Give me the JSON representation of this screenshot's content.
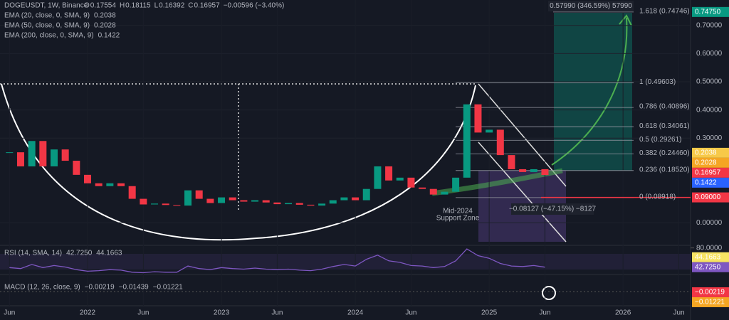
{
  "header": {
    "symbol": "DOGEUSDT, 1W, Binance",
    "ohlc": [
      {
        "key": "O",
        "value": "0.17554"
      },
      {
        "key": "H",
        "value": "0.18115"
      },
      {
        "key": "L",
        "value": "0.16392"
      },
      {
        "key": "C",
        "value": "0.16957"
      }
    ],
    "change": "−0.00596 (−3.40%)",
    "indicators": [
      {
        "label": "EMA (20, close, 0, SMA, 9)",
        "value": "0.2038",
        "color": "#f7e463"
      },
      {
        "label": "EMA (50, close, 0, SMA, 9)",
        "value": "0.2028",
        "color": "#f5a623"
      },
      {
        "label": "EMA (200, close, 0, SMA, 9)",
        "value": "0.1422",
        "color": "#2196f3"
      }
    ]
  },
  "chart_data": {
    "type": "candlestick",
    "x": [
      "2021-06",
      "2021-07",
      "2021-08",
      "2021-09",
      "2021-10",
      "2021-11",
      "2021-12",
      "2022-01",
      "2022-02",
      "2022-03",
      "2022-04",
      "2022-05",
      "2022-06",
      "2022-07",
      "2022-08",
      "2022-09",
      "2022-10",
      "2022-11",
      "2022-12",
      "2023-01",
      "2023-02",
      "2023-03",
      "2023-04",
      "2023-05",
      "2023-06",
      "2023-07",
      "2023-08",
      "2023-09",
      "2023-10",
      "2023-11",
      "2023-12",
      "2024-01",
      "2024-02",
      "2024-03",
      "2024-04",
      "2024-05",
      "2024-06",
      "2024-07",
      "2024-08",
      "2024-09",
      "2024-10",
      "2024-11",
      "2024-12",
      "2025-01",
      "2025-02",
      "2025-03",
      "2025-04",
      "2025-05",
      "2025-06"
    ],
    "values": [
      0.25,
      0.2,
      0.29,
      0.2,
      0.26,
      0.22,
      0.17,
      0.14,
      0.13,
      0.14,
      0.13,
      0.085,
      0.065,
      0.068,
      0.063,
      0.061,
      0.115,
      0.085,
      0.07,
      0.09,
      0.08,
      0.075,
      0.08,
      0.072,
      0.066,
      0.07,
      0.064,
      0.061,
      0.068,
      0.08,
      0.09,
      0.08,
      0.12,
      0.2,
      0.15,
      0.16,
      0.125,
      0.12,
      0.1,
      0.11,
      0.16,
      0.42,
      0.32,
      0.33,
      0.24,
      0.19,
      0.18,
      0.19,
      0.16957
    ],
    "up_color": "#089981",
    "down_color": "#f23645",
    "ylim": [
      -0.08,
      0.79
    ],
    "yticks": [
      {
        "value": 0.7,
        "label": "0.70000"
      },
      {
        "value": 0.6,
        "label": "0.60000"
      },
      {
        "value": 0.5,
        "label": "0.50000"
      },
      {
        "value": 0.4,
        "label": "0.40000"
      },
      {
        "value": 0.3,
        "label": "0.30000"
      },
      {
        "value": 0,
        "label": "0.00000"
      }
    ],
    "xticks": [
      {
        "value": "2021-06",
        "label": "Jun"
      },
      {
        "value": "2022-01",
        "label": "2022"
      },
      {
        "value": "2022-06",
        "label": "Jun"
      },
      {
        "value": "2023-01",
        "label": "2023"
      },
      {
        "value": "2023-06",
        "label": "Jun"
      },
      {
        "value": "2024-01",
        "label": "2024"
      },
      {
        "value": "2024-06",
        "label": "Jun"
      },
      {
        "value": "2025-01",
        "label": "2025"
      },
      {
        "value": "2025-06",
        "label": "Jun"
      },
      {
        "value": "2026-01",
        "label": "2026"
      },
      {
        "value": "2026-06",
        "label": "Jun"
      }
    ],
    "price_tags": [
      {
        "value": 0.7475,
        "label": "0.74750",
        "color": "#089981"
      },
      {
        "value": 0.2038,
        "label": "0.2038",
        "color": "#f7c948"
      },
      {
        "value": 0.2028,
        "label": "0.2028",
        "color": "#f5a623"
      },
      {
        "value": 0.16957,
        "label": "0.16957",
        "color": "#f23645"
      },
      {
        "value": 0.1422,
        "label": "0.1422",
        "color": "#2962ff"
      },
      {
        "value": 0.09,
        "label": "0.09000",
        "color": "#f23645"
      }
    ],
    "fib_levels": [
      {
        "value": 0.74746,
        "label": "1.618 (0.74746)"
      },
      {
        "value": 0.49603,
        "label": "1 (0.49603)"
      },
      {
        "value": 0.40896,
        "label": "0.786 (0.40896)"
      },
      {
        "value": 0.34061,
        "label": "0.618 (0.34061)"
      },
      {
        "value": 0.29261,
        "label": "0.5 (0.29261)"
      },
      {
        "value": 0.2446,
        "label": "0.382 (0.24460)"
      },
      {
        "value": 0.1852,
        "label": "0.236 (0.18520)"
      },
      {
        "value": 0.08918,
        "label": "0 (0.08918)"
      }
    ],
    "annotations": {
      "gain": "0.57990 (346.59%) 57990",
      "loss": "−0.08127 (−47.15%) −8127",
      "zone": [
        "Mid-2024",
        "Support Zone"
      ]
    },
    "rsi": {
      "title": "RSI (14, SMA, 14)",
      "values": [
        42,
        40,
        48,
        42,
        46,
        43,
        38,
        35,
        36,
        38,
        37,
        33,
        32,
        34,
        33,
        33,
        45,
        40,
        38,
        42,
        40,
        39,
        41,
        39,
        38,
        39,
        37,
        36,
        39,
        44,
        48,
        45,
        58,
        66,
        55,
        52,
        46,
        45,
        42,
        44,
        55,
        78,
        65,
        60,
        50,
        45,
        44,
        46,
        42.725
      ],
      "color": "#7e57c2",
      "ylim": [
        30,
        85
      ],
      "yticks": [
        {
          "value": 80,
          "label": "80.0000"
        }
      ],
      "tags": [
        {
          "value": 44.1663,
          "label": "44.1663",
          "color": "#f7e463"
        },
        {
          "value": 42.725,
          "label": "42.7250",
          "color": "#7e57c2"
        }
      ]
    },
    "macd": {
      "title": "MACD (12, 26, close, 9)",
      "readouts": [
        {
          "value": "−0.00219",
          "color": "#f23645"
        },
        {
          "value": "−0.01439",
          "color": "#2196f3"
        },
        {
          "value": "−0.01221",
          "color": "#f5a623"
        }
      ],
      "ylim": [
        -0.05,
        0.05
      ],
      "tags": [
        {
          "value": -0.00219,
          "label": "−0.00219",
          "color": "#f23645"
        },
        {
          "value": -0.01221,
          "label": "−0.01221",
          "color": "#f5a623"
        }
      ]
    }
  }
}
